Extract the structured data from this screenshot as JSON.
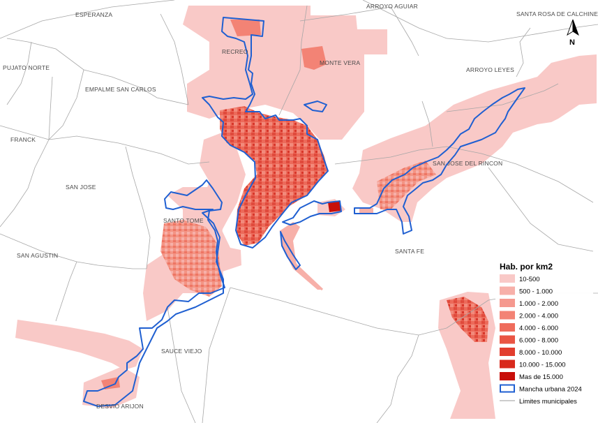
{
  "places": {
    "esperanza": "ESPERANZA",
    "arroyo_aguiar": "ARROYO AGUIAR",
    "santa_rosa": "SANTA ROSA DE CALCHINES",
    "recreo": "RECREO",
    "monte_vera": "MONTE VERA",
    "pujato_norte": "PUJATO NORTE",
    "empalme": "EMPALME SAN CARLOS",
    "arroyo_leyes": "ARROYO LEYES",
    "franck": "FRANCK",
    "san_jose_rincon": "SAN JOSE DEL RINCON",
    "san_jose": "SAN JOSE",
    "santo_tome": "SANTO TOME",
    "santa_fe": "SANTA FE",
    "san_agustin": "SAN AGUSTIN",
    "sauce_viejo": "SAUCE VIEJO",
    "desvio_arijon": "DESVIO ARIJON"
  },
  "north": {
    "label": "N",
    "icon": "north-arrow-icon"
  },
  "legend": {
    "title": "Hab. por km2",
    "classes": [
      {
        "label": "10-500",
        "color": "#f9c9c7"
      },
      {
        "label": "500 - 1.000",
        "color": "#f7b0a9"
      },
      {
        "label": "1.000 - 2.000",
        "color": "#f5998f"
      },
      {
        "label": "2.000 - 4.000",
        "color": "#f38375"
      },
      {
        "label": "4.000 - 6.000",
        "color": "#ef6c5c"
      },
      {
        "label": "6.000 - 8.000",
        "color": "#ea5544"
      },
      {
        "label": "8.000 - 10.000",
        "color": "#e23d2e"
      },
      {
        "label": "10.000 - 15.000",
        "color": "#d82a1d"
      },
      {
        "label": "Mas de 15.000",
        "color": "#c80f0a"
      }
    ],
    "urban": {
      "label": "Mancha urbana 2024",
      "color": "#1f5fd1"
    },
    "limits": {
      "label": "Limites municipales",
      "color": "#9a9a9a"
    }
  }
}
